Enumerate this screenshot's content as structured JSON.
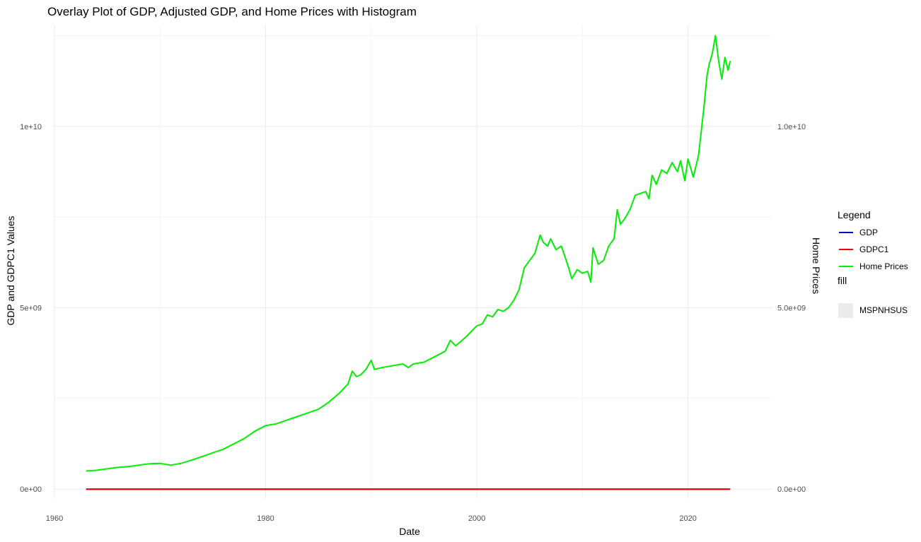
{
  "chart_data": {
    "type": "line",
    "title": "Overlay Plot of GDP, Adjusted GDP, and Home Prices with Histogram",
    "xlabel": "Date",
    "ylabel": "GDP and GDPC1 Values",
    "ylabel_right": "Home Prices",
    "xlim": [
      1960,
      2028
    ],
    "ylim": [
      -250000000,
      12800000000
    ],
    "grid": true,
    "legend_position": "right",
    "x_ticks": [
      1960,
      1980,
      2000,
      2020
    ],
    "y_ticks": [
      {
        "value": 0,
        "label": "0e+00"
      },
      {
        "value": 5000000000,
        "label": "5e+09"
      },
      {
        "value": 10000000000,
        "label": "1e+10"
      }
    ],
    "y_ticks_right": [
      {
        "value": 0,
        "label": "0.0e+00"
      },
      {
        "value": 5000000000,
        "label": "5.0e+09"
      },
      {
        "value": 10000000000,
        "label": "1.0e+10"
      }
    ],
    "legends": [
      {
        "title": "Legend",
        "entries": [
          {
            "label": "GDP",
            "color": "#0000cc"
          },
          {
            "label": "GDPC1",
            "color": "#ee0000"
          },
          {
            "label": "Home Prices",
            "color": "#00ee00"
          }
        ]
      },
      {
        "title": "fill",
        "entries": [
          {
            "label": "MSPNHSUS",
            "color": "#ebebeb"
          }
        ]
      }
    ],
    "series": [
      {
        "name": "GDP",
        "color": "#0000cc",
        "x": [
          1963.0,
          2024.0
        ],
        "y": [
          0,
          0
        ]
      },
      {
        "name": "Home Prices",
        "color": "#00ee00",
        "x": [
          1963.0,
          1964.0,
          1965.0,
          1966.0,
          1967.0,
          1968.0,
          1969.0,
          1970.0,
          1971.0,
          1972.0,
          1973.0,
          1974.0,
          1975.0,
          1976.0,
          1977.0,
          1978.0,
          1979.0,
          1980.0,
          1981.0,
          1982.0,
          1983.0,
          1984.0,
          1985.0,
          1986.0,
          1987.0,
          1987.8,
          1988.2,
          1988.6,
          1989.0,
          1989.5,
          1990.0,
          1990.3,
          1991.0,
          1992.0,
          1993.0,
          1993.5,
          1994.0,
          1995.0,
          1996.0,
          1997.0,
          1997.5,
          1998.0,
          1999.0,
          2000.0,
          2000.5,
          2001.0,
          2001.5,
          2002.0,
          2002.5,
          2003.0,
          2003.5,
          2004.0,
          2004.5,
          2005.0,
          2005.5,
          2006.0,
          2006.3,
          2006.7,
          2007.0,
          2007.5,
          2008.0,
          2008.3,
          2008.7,
          2009.0,
          2009.5,
          2010.0,
          2010.5,
          2010.8,
          2011.0,
          2011.5,
          2012.0,
          2012.5,
          2013.0,
          2013.3,
          2013.6,
          2014.0,
          2014.5,
          2015.0,
          2015.5,
          2016.0,
          2016.3,
          2016.6,
          2017.0,
          2017.5,
          2018.0,
          2018.5,
          2019.0,
          2019.3,
          2019.7,
          2020.0,
          2020.5,
          2021.0,
          2021.5,
          2021.8,
          2022.0,
          2022.3,
          2022.6,
          2022.9,
          2023.2,
          2023.5,
          2023.8,
          2024.0
        ],
        "y": [
          500000000,
          520000000,
          560000000,
          600000000,
          620000000,
          660000000,
          700000000,
          710000000,
          660000000,
          710000000,
          800000000,
          900000000,
          1000000000,
          1100000000,
          1250000000,
          1400000000,
          1600000000,
          1750000000,
          1800000000,
          1900000000,
          2000000000,
          2100000000,
          2200000000,
          2400000000,
          2650000000,
          2900000000,
          3250000000,
          3100000000,
          3150000000,
          3300000000,
          3550000000,
          3300000000,
          3350000000,
          3400000000,
          3450000000,
          3350000000,
          3450000000,
          3500000000,
          3650000000,
          3800000000,
          4100000000,
          3950000000,
          4200000000,
          4500000000,
          4550000000,
          4800000000,
          4750000000,
          4950000000,
          4900000000,
          5000000000,
          5200000000,
          5500000000,
          6100000000,
          6300000000,
          6500000000,
          7000000000,
          6800000000,
          6700000000,
          6900000000,
          6600000000,
          6700000000,
          6450000000,
          6100000000,
          5800000000,
          6050000000,
          5950000000,
          6000000000,
          5700000000,
          6650000000,
          6200000000,
          6300000000,
          6700000000,
          6900000000,
          7700000000,
          7300000000,
          7450000000,
          7700000000,
          8100000000,
          8150000000,
          8200000000,
          8000000000,
          8650000000,
          8400000000,
          8800000000,
          8700000000,
          9000000000,
          8750000000,
          9050000000,
          8500000000,
          9100000000,
          8600000000,
          9200000000,
          10500000000,
          11400000000,
          11700000000,
          12000000000,
          12500000000,
          11800000000,
          11300000000,
          11900000000,
          11550000000,
          11800000000
        ]
      }
    ],
    "lines_overlaid": [
      {
        "name": "GDPC1",
        "color": "#ee0000",
        "x": [
          1963.0,
          2024.0
        ],
        "y": [
          0,
          0
        ]
      }
    ]
  }
}
